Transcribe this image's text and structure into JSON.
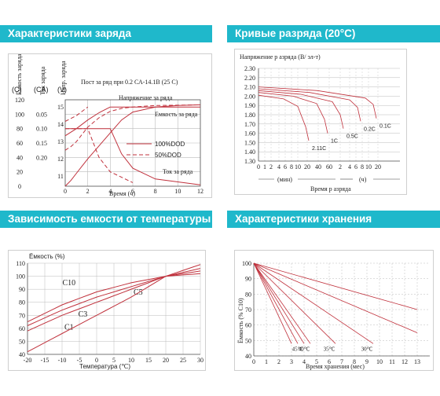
{
  "headers": {
    "charge": "Характеристики заряда",
    "discharge": "Кривые разряда (20°C)",
    "temperature": "Зависимость емкости от температуры",
    "storage": "Характеристики хранения"
  },
  "colors": {
    "header_bg": "#1fb8cb",
    "curve": "#c0313c",
    "grid": "#bbbbbb"
  },
  "chart_data": [
    {
      "type": "line",
      "title": "Пост за ряд при 0.2 СА-14.1В (25 С)",
      "xlabel": "Время (ч)",
      "axis_titles": {
        "capacity": "Ёмкость заряда",
        "current": "Ток заряда",
        "voltage": "Напр. заряда"
      },
      "axis_units": {
        "capacity": "(C)",
        "current": "(CA)",
        "voltage": "(V)"
      },
      "x_ticks": [
        "0",
        "2",
        "4",
        "6",
        "8",
        "10",
        "12"
      ],
      "capacity_ticks": [
        "0",
        "20",
        "40",
        "60",
        "80",
        "100",
        "120"
      ],
      "current_ticks": [
        "0.20",
        "0.15",
        "0.10",
        "0.05"
      ],
      "voltage_ticks": [
        "15",
        "14",
        "13",
        "12",
        "11"
      ],
      "annotations": {
        "voltage": "Напряжение за ряда",
        "capacity": "Емкость за ряда",
        "current": "Ток за ряда"
      },
      "legend": [
        "100%DOD",
        "50%DOD"
      ],
      "xlim": [
        0,
        12
      ],
      "series": [
        {
          "name": "100%DOD",
          "x": [
            0,
            0.5,
            1,
            1.5,
            2,
            3,
            4,
            5,
            6,
            8,
            10,
            12
          ],
          "y": [
            0,
            8,
            18,
            28,
            38,
            56,
            74,
            92,
            103,
            110,
            112,
            113
          ]
        },
        {
          "name": "50%DOD",
          "x": [
            0,
            0.5,
            1,
            1.5,
            2,
            3,
            4,
            5,
            6,
            8,
            12
          ],
          "y": [
            50,
            55,
            62,
            72,
            82,
            95,
            104,
            108,
            110,
            112,
            113
          ]
        }
      ]
    },
    {
      "type": "line",
      "ylabel": "Напряжение р азряда (В/ эл-т)",
      "xlabel": "Время р азряда",
      "y_ticks": [
        "2.30",
        "2.20",
        "2.10",
        "2.00",
        "1.90",
        "1.80",
        "1.70",
        "1.60",
        "1.50",
        "1.40",
        "1.30"
      ],
      "x_ticks_min": [
        "0",
        "1",
        "2",
        "4",
        "6",
        "8",
        "10",
        "20",
        "40",
        "60"
      ],
      "x_ticks_h": [
        "2",
        "4",
        "6",
        "8",
        "10",
        "20"
      ],
      "x_units": [
        "(мин)",
        "(ч)"
      ],
      "ylim": [
        1.3,
        2.3
      ],
      "series": [
        {
          "name": "2.11C",
          "x": [
            1,
            2,
            4,
            6,
            8,
            10
          ],
          "y": [
            2.0,
            1.97,
            1.93,
            1.85,
            1.7,
            1.55
          ]
        },
        {
          "name": "1C",
          "x": [
            1,
            4,
            10,
            20,
            40
          ],
          "y": [
            2.04,
            2.0,
            1.95,
            1.85,
            1.6
          ]
        },
        {
          "name": "0.5C",
          "x": [
            1,
            10,
            40,
            60,
            120
          ],
          "y": [
            2.06,
            2.02,
            1.95,
            1.86,
            1.6
          ]
        },
        {
          "name": "0.2C",
          "x": [
            1,
            60,
            240,
            300
          ],
          "y": [
            2.08,
            2.02,
            1.9,
            1.75
          ]
        },
        {
          "name": "0.1C",
          "x": [
            1,
            120,
            480,
            600
          ],
          "y": [
            2.1,
            2.05,
            1.92,
            1.8
          ]
        }
      ]
    },
    {
      "type": "line",
      "ylabel": "Ёмкость (%)",
      "xlabel": "Температура (℃)",
      "x_ticks": [
        "-20",
        "-15",
        "-10",
        "-5",
        "0",
        "5",
        "10",
        "15",
        "20",
        "25",
        "30"
      ],
      "y_ticks": [
        "40",
        "50",
        "60",
        "70",
        "80",
        "90",
        "100",
        "110"
      ],
      "xlim": [
        -20,
        30
      ],
      "ylim": [
        40,
        110
      ],
      "series": [
        {
          "name": "C10",
          "x": [
            -20,
            -10,
            0,
            10,
            20,
            30
          ],
          "y": [
            65,
            78,
            88,
            95,
            100,
            102
          ]
        },
        {
          "name": "C5",
          "x": [
            -20,
            -10,
            0,
            10,
            20,
            30
          ],
          "y": [
            62,
            74,
            84,
            92,
            100,
            104
          ]
        },
        {
          "name": "C3",
          "x": [
            -20,
            -10,
            0,
            10,
            20,
            30
          ],
          "y": [
            58,
            70,
            80,
            90,
            100,
            106
          ]
        },
        {
          "name": "C1",
          "x": [
            -20,
            -10,
            0,
            10,
            20,
            30
          ],
          "y": [
            42,
            56,
            70,
            84,
            100,
            109
          ]
        }
      ]
    },
    {
      "type": "line",
      "ylabel": "Ёмкость (% С10)",
      "xlabel": "Время хранения (мес)",
      "x_ticks": [
        "0",
        "1",
        "2",
        "3",
        "4",
        "5",
        "6",
        "7",
        "8",
        "9",
        "10",
        "11",
        "12",
        "13"
      ],
      "y_ticks": [
        "40",
        "50",
        "60",
        "70",
        "80",
        "90",
        "100"
      ],
      "ylim": [
        40,
        100
      ],
      "series": [
        {
          "name": "45℃",
          "x": [
            0,
            4
          ],
          "y": [
            100,
            48
          ]
        },
        {
          "name": "40℃",
          "x": [
            0,
            4.5
          ],
          "y": [
            100,
            48
          ]
        },
        {
          "name": "35℃",
          "x": [
            0,
            6.5
          ],
          "y": [
            100,
            48
          ]
        },
        {
          "name": "30℃",
          "x": [
            0,
            9.5
          ],
          "y": [
            100,
            48
          ]
        },
        {
          "name": "",
          "x": [
            0,
            13
          ],
          "y": [
            100,
            70
          ]
        },
        {
          "name": "",
          "x": [
            0,
            13
          ],
          "y": [
            100,
            55
          ]
        }
      ]
    }
  ]
}
